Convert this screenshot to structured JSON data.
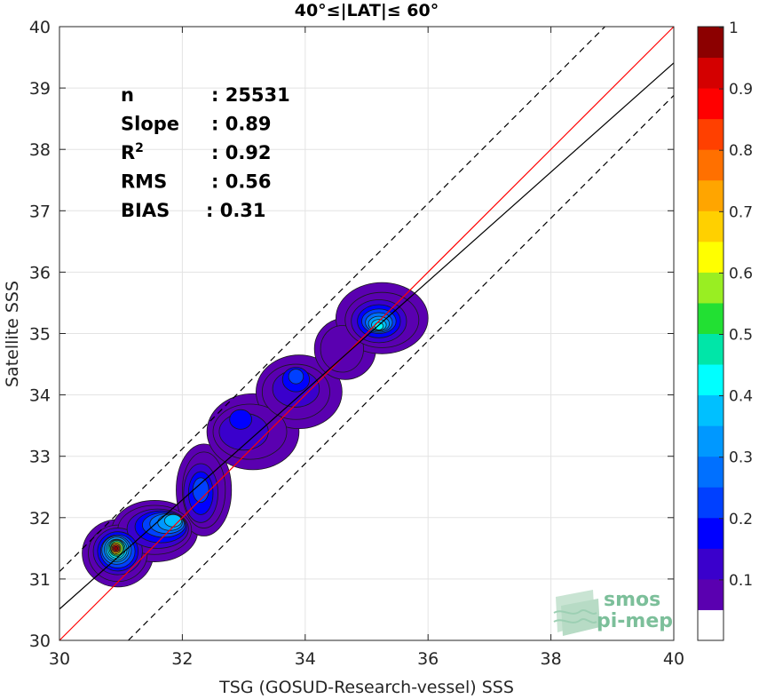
{
  "chart_data": {
    "type": "heatmap",
    "title": "40°≤|LAT|≤ 60°",
    "xlabel": "TSG (GOSUD-Research-vessel) SSS",
    "ylabel": "Satellite SSS",
    "xlim": [
      30,
      40
    ],
    "ylim": [
      30,
      40
    ],
    "x_ticks": [
      "30",
      "32",
      "34",
      "36",
      "38",
      "40"
    ],
    "y_ticks": [
      "30",
      "31",
      "32",
      "33",
      "34",
      "35",
      "36",
      "37",
      "38",
      "39",
      "40"
    ],
    "grid": true,
    "stats": [
      {
        "label": "n",
        "value": ": 25531"
      },
      {
        "label": "Slope",
        "value": ": 0.89"
      },
      {
        "label": "R",
        "sup": "2",
        "value": ": 0.92"
      },
      {
        "label": "RMS",
        "value": ": 0.56"
      },
      {
        "label": "BIAS",
        "value": ": 0.31"
      }
    ],
    "lines": [
      {
        "kind": "identity",
        "color": "#ff0000",
        "style": "solid",
        "intercept": 0,
        "slope": 1
      },
      {
        "kind": "fit",
        "color": "#000000",
        "style": "solid",
        "intercept": 3.81,
        "slope": 0.89
      },
      {
        "kind": "upper-bound",
        "color": "#000000",
        "style": "dashed",
        "intercept": 1.12,
        "slope": 1
      },
      {
        "kind": "lower-bound",
        "color": "#000000",
        "style": "dashed",
        "intercept": -1.12,
        "slope": 1
      }
    ],
    "density_levels": [
      {
        "level": 0.05,
        "blobs": [
          [
            30.95,
            31.42,
            0.58,
            0.55
          ],
          [
            31.55,
            31.78,
            0.7,
            0.5
          ],
          [
            32.35,
            32.45,
            0.45,
            0.75
          ],
          [
            33.15,
            33.4,
            0.75,
            0.62
          ],
          [
            33.9,
            34.05,
            0.7,
            0.6
          ],
          [
            34.65,
            34.75,
            0.5,
            0.5
          ],
          [
            35.25,
            35.25,
            0.75,
            0.58
          ]
        ]
      },
      {
        "level": 0.1,
        "blobs": [
          [
            30.95,
            31.42,
            0.48,
            0.46
          ],
          [
            31.55,
            31.8,
            0.6,
            0.4
          ],
          [
            32.35,
            32.45,
            0.35,
            0.62
          ],
          [
            33.1,
            33.4,
            0.6,
            0.45
          ],
          [
            33.85,
            34.05,
            0.55,
            0.45
          ],
          [
            34.6,
            34.75,
            0.35,
            0.38
          ],
          [
            35.25,
            35.22,
            0.6,
            0.45
          ]
        ]
      },
      {
        "level": 0.15,
        "blobs": [
          [
            30.95,
            31.45,
            0.4,
            0.38
          ],
          [
            31.6,
            31.82,
            0.5,
            0.32
          ],
          [
            32.3,
            32.4,
            0.28,
            0.48
          ],
          [
            33.0,
            33.4,
            0.4,
            0.3
          ],
          [
            33.85,
            34.1,
            0.38,
            0.3
          ],
          [
            35.2,
            35.2,
            0.45,
            0.35
          ]
        ]
      },
      {
        "level": 0.2,
        "blobs": [
          [
            30.95,
            31.45,
            0.33,
            0.32
          ],
          [
            31.65,
            31.85,
            0.42,
            0.26
          ],
          [
            32.3,
            32.4,
            0.2,
            0.35
          ],
          [
            32.95,
            33.6,
            0.18,
            0.16
          ],
          [
            33.85,
            34.25,
            0.22,
            0.2
          ],
          [
            35.2,
            35.2,
            0.35,
            0.27
          ]
        ]
      },
      {
        "level": 0.25,
        "blobs": [
          [
            30.95,
            31.45,
            0.28,
            0.27
          ],
          [
            31.7,
            31.88,
            0.35,
            0.2
          ],
          [
            32.3,
            32.45,
            0.13,
            0.2
          ],
          [
            33.85,
            34.3,
            0.12,
            0.12
          ],
          [
            35.2,
            35.2,
            0.28,
            0.2
          ]
        ]
      },
      {
        "level": 0.3,
        "blobs": [
          [
            30.93,
            31.47,
            0.24,
            0.23
          ],
          [
            31.75,
            31.9,
            0.28,
            0.16
          ],
          [
            35.2,
            35.18,
            0.22,
            0.16
          ]
        ]
      },
      {
        "level": 0.35,
        "blobs": [
          [
            30.93,
            31.48,
            0.2,
            0.2
          ],
          [
            31.8,
            31.92,
            0.2,
            0.13
          ],
          [
            35.2,
            35.16,
            0.17,
            0.12
          ]
        ]
      },
      {
        "level": 0.4,
        "blobs": [
          [
            30.93,
            31.48,
            0.17,
            0.17
          ],
          [
            31.85,
            31.95,
            0.14,
            0.1
          ],
          [
            35.2,
            35.14,
            0.12,
            0.09
          ]
        ]
      },
      {
        "level": 0.45,
        "blobs": [
          [
            30.93,
            31.49,
            0.14,
            0.15
          ],
          [
            35.2,
            35.12,
            0.07,
            0.06
          ]
        ]
      },
      {
        "level": 0.5,
        "blobs": [
          [
            30.93,
            31.5,
            0.12,
            0.13
          ]
        ]
      },
      {
        "level": 0.6,
        "blobs": [
          [
            30.93,
            31.5,
            0.1,
            0.11
          ]
        ]
      },
      {
        "level": 0.7,
        "blobs": [
          [
            30.92,
            31.5,
            0.08,
            0.09
          ]
        ]
      },
      {
        "level": 0.8,
        "blobs": [
          [
            30.92,
            31.5,
            0.065,
            0.07
          ]
        ]
      },
      {
        "level": 0.9,
        "blobs": [
          [
            30.92,
            31.5,
            0.05,
            0.05
          ]
        ]
      },
      {
        "level": 1.0,
        "blobs": [
          [
            30.92,
            31.5,
            0.03,
            0.03
          ]
        ]
      }
    ],
    "colorbar": {
      "ticks": [
        "0.1",
        "0.2",
        "0.3",
        "0.4",
        "0.5",
        "0.6",
        "0.7",
        "0.8",
        "0.9",
        "1"
      ],
      "colors": [
        "#ffffff",
        "#5a00b0",
        "#3a00cc",
        "#0000ff",
        "#0040ff",
        "#0070ff",
        "#0098ff",
        "#00c0ff",
        "#00ffff",
        "#00e6a8",
        "#22e033",
        "#99ee22",
        "#ffff00",
        "#ffd000",
        "#ffa500",
        "#ff7000",
        "#ff4000",
        "#ff0000",
        "#d40000",
        "#8c0000"
      ]
    }
  },
  "logo": {
    "line1": "smos",
    "line2": "pi-mep",
    "color": "#7cbf9a"
  }
}
